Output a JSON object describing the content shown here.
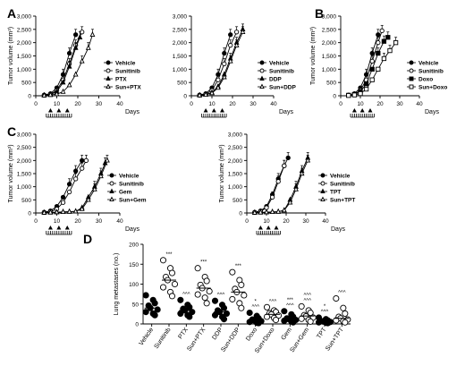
{
  "figure": {
    "panel_letters": [
      "A",
      "B",
      "C",
      "D"
    ]
  },
  "chart_data": [
    {
      "id": "A1",
      "panel": "A",
      "type": "line",
      "ylabel": "Tumor volume (mm³)",
      "xlabel": "Days",
      "xlim": [
        0,
        40
      ],
      "ylim": [
        0,
        3000
      ],
      "xticks": [
        0,
        10,
        20,
        30,
        40
      ],
      "yticks": [
        0,
        500,
        1000,
        1500,
        2000,
        2500,
        3000
      ],
      "ytick_labels": [
        "0",
        "500",
        "1,000",
        "1,500",
        "2,000",
        "2,500",
        "3,000"
      ],
      "legend": [
        "Vehicle",
        "Sunitinib",
        "PTX",
        "Sun+PTX"
      ],
      "series": [
        {
          "name": "Vehicle",
          "marker": "circle-filled",
          "x": [
            4,
            7,
            10,
            13,
            16,
            19
          ],
          "y": [
            30,
            80,
            300,
            800,
            1600,
            2300
          ]
        },
        {
          "name": "Sunitinib",
          "marker": "circle-open",
          "x": [
            4,
            7,
            10,
            13,
            16,
            19,
            22
          ],
          "y": [
            20,
            60,
            200,
            600,
            1200,
            1900,
            2400
          ]
        },
        {
          "name": "PTX",
          "marker": "triangle-filled",
          "x": [
            4,
            7,
            10,
            13,
            16,
            19,
            21
          ],
          "y": [
            20,
            50,
            150,
            500,
            1100,
            1800,
            2200
          ]
        },
        {
          "name": "Sun+PTX",
          "marker": "triangle-open",
          "x": [
            4,
            7,
            10,
            13,
            16,
            19,
            22,
            25,
            27
          ],
          "y": [
            10,
            30,
            60,
            150,
            400,
            800,
            1300,
            1800,
            2300
          ]
        }
      ],
      "dosing": {
        "triangles": [
          7,
          11,
          15
        ],
        "ticks": [
          5,
          6,
          7,
          8,
          9,
          10,
          11,
          12,
          13,
          14,
          15,
          16,
          17
        ]
      }
    },
    {
      "id": "A2",
      "panel": "A",
      "type": "line",
      "xlabel": "Days",
      "xlim": [
        0,
        40
      ],
      "ylim": [
        0,
        3000
      ],
      "xticks": [
        0,
        10,
        20,
        30,
        40
      ],
      "yticks": [
        0,
        500,
        1000,
        1500,
        2000,
        2500,
        3000
      ],
      "ytick_labels": [
        "0",
        "500",
        "1,000",
        "1,500",
        "2,000",
        "2,500",
        "3,000"
      ],
      "legend": [
        "Vehicle",
        "Sunitinib",
        "DDP",
        "Sun+DDP"
      ],
      "series": [
        {
          "name": "Vehicle",
          "marker": "circle-filled",
          "x": [
            4,
            7,
            10,
            13,
            16,
            19
          ],
          "y": [
            30,
            80,
            300,
            800,
            1600,
            2300
          ]
        },
        {
          "name": "Sunitinib",
          "marker": "circle-open",
          "x": [
            4,
            7,
            10,
            13,
            16,
            19,
            22
          ],
          "y": [
            20,
            60,
            200,
            600,
            1200,
            1900,
            2400
          ]
        },
        {
          "name": "DDP",
          "marker": "triangle-filled",
          "x": [
            4,
            7,
            10,
            13,
            16,
            19,
            22,
            25
          ],
          "y": [
            20,
            50,
            120,
            350,
            800,
            1400,
            2000,
            2500
          ]
        },
        {
          "name": "Sun+DDP",
          "marker": "triangle-open",
          "x": [
            4,
            7,
            10,
            13,
            16,
            19,
            22,
            25
          ],
          "y": [
            15,
            40,
            100,
            300,
            700,
            1300,
            1900,
            2400
          ]
        }
      ],
      "dosing": {
        "triangles": [
          7,
          11,
          15
        ],
        "ticks": [
          5,
          6,
          7,
          8,
          9,
          10,
          11,
          12,
          13,
          14,
          15,
          16,
          17
        ]
      }
    },
    {
      "id": "B1",
      "panel": "B",
      "type": "line",
      "ylabel": "Tumor volume (mm³)",
      "xlabel": "Days",
      "xlim": [
        0,
        40
      ],
      "ylim": [
        0,
        3000
      ],
      "xticks": [
        0,
        10,
        20,
        30,
        40
      ],
      "yticks": [
        0,
        500,
        1000,
        1500,
        2000,
        2500,
        3000
      ],
      "ytick_labels": [
        "0",
        "500",
        "1,000",
        "1,500",
        "2,000",
        "2,500",
        "3,000"
      ],
      "legend": [
        "Vehicle",
        "Sunitinib",
        "Doxo",
        "Sun+Doxo"
      ],
      "series": [
        {
          "name": "Vehicle",
          "marker": "circle-filled",
          "x": [
            4,
            7,
            10,
            13,
            16,
            19
          ],
          "y": [
            30,
            80,
            300,
            800,
            1600,
            2300
          ]
        },
        {
          "name": "Sunitinib",
          "marker": "circle-open",
          "x": [
            4,
            7,
            10,
            13,
            16,
            19,
            21
          ],
          "y": [
            20,
            60,
            200,
            600,
            1300,
            2000,
            2450
          ]
        },
        {
          "name": "Doxo",
          "marker": "square-filled",
          "x": [
            4,
            7,
            10,
            13,
            16,
            19,
            22,
            24
          ],
          "y": [
            20,
            50,
            150,
            450,
            1000,
            1600,
            2050,
            2200
          ]
        },
        {
          "name": "Sun+Doxo",
          "marker": "square-open",
          "x": [
            4,
            7,
            10,
            13,
            16,
            19,
            22,
            25,
            28
          ],
          "y": [
            10,
            30,
            80,
            250,
            600,
            1000,
            1400,
            1700,
            2000
          ]
        }
      ],
      "dosing": {
        "triangles": [
          7,
          11,
          15
        ],
        "ticks": [
          5,
          6,
          7,
          8,
          9,
          10,
          11,
          12,
          13,
          14,
          15,
          16,
          17
        ]
      }
    },
    {
      "id": "C1",
      "panel": "C",
      "type": "line",
      "ylabel": "Tumor volume (mm³)",
      "xlabel": "Days",
      "xlim": [
        0,
        40
      ],
      "ylim": [
        0,
        3000
      ],
      "xticks": [
        0,
        10,
        20,
        30,
        40
      ],
      "yticks": [
        0,
        500,
        1000,
        1500,
        2000,
        2500,
        3000
      ],
      "ytick_labels": [
        "0",
        "500",
        "1,000",
        "1,500",
        "2,000",
        "2,500",
        "3,000"
      ],
      "legend": [
        "Vehicle",
        "Sunitinib",
        "Gem",
        "Sun+Gem"
      ],
      "series": [
        {
          "name": "Vehicle",
          "marker": "circle-filled",
          "x": [
            4,
            7,
            10,
            13,
            16,
            19,
            22
          ],
          "y": [
            30,
            80,
            250,
            600,
            1100,
            1600,
            2000
          ]
        },
        {
          "name": "Sunitinib",
          "marker": "circle-open",
          "x": [
            4,
            7,
            10,
            13,
            16,
            19,
            22,
            24
          ],
          "y": [
            20,
            50,
            150,
            400,
            800,
            1300,
            1700,
            2000
          ]
        },
        {
          "name": "Gem",
          "marker": "triangle-filled",
          "x": [
            4,
            7,
            10,
            13,
            16,
            19,
            22,
            25,
            28,
            31,
            33
          ],
          "y": [
            10,
            20,
            30,
            40,
            50,
            60,
            200,
            600,
            1000,
            1500,
            1900
          ]
        },
        {
          "name": "Sun+Gem",
          "marker": "triangle-open",
          "x": [
            4,
            7,
            10,
            13,
            16,
            19,
            22,
            25,
            28,
            31,
            34
          ],
          "y": [
            10,
            20,
            30,
            40,
            50,
            60,
            150,
            500,
            900,
            1400,
            2000
          ]
        }
      ],
      "dosing": {
        "triangles": [
          7,
          11,
          15
        ],
        "ticks": [
          5,
          6,
          7,
          8,
          9,
          10,
          11,
          12,
          13,
          14,
          15,
          16,
          17
        ]
      }
    },
    {
      "id": "C2",
      "panel": "C",
      "type": "line",
      "ylabel": "Tumor volume (mm³)",
      "xlabel": "Days",
      "xlim": [
        0,
        40
      ],
      "ylim": [
        0,
        3000
      ],
      "xticks": [
        0,
        10,
        20,
        30,
        40
      ],
      "yticks": [
        0,
        500,
        1000,
        1500,
        2000,
        2500,
        3000
      ],
      "ytick_labels": [
        "0",
        "500",
        "1,000",
        "1,500",
        "2,000",
        "2,500",
        "3,000"
      ],
      "legend": [
        "Vehicle",
        "Sunitinib",
        "TPT",
        "Sun+TPT"
      ],
      "series": [
        {
          "name": "Vehicle",
          "marker": "circle-filled",
          "x": [
            4,
            7,
            10,
            13,
            16,
            19,
            21
          ],
          "y": [
            30,
            80,
            250,
            700,
            1300,
            1800,
            2100
          ]
        },
        {
          "name": "Sunitinib",
          "marker": "circle-open",
          "x": [
            4,
            7,
            10,
            13,
            16,
            19
          ],
          "y": [
            20,
            60,
            200,
            600,
            1200,
            1800
          ]
        },
        {
          "name": "TPT",
          "marker": "triangle-filled",
          "x": [
            4,
            7,
            10,
            13,
            16,
            19,
            22,
            25,
            28,
            31
          ],
          "y": [
            10,
            20,
            30,
            40,
            50,
            100,
            500,
            1000,
            1600,
            2100
          ]
        },
        {
          "name": "Sun+TPT",
          "marker": "triangle-open",
          "x": [
            4,
            7,
            10,
            13,
            16,
            19,
            22,
            25,
            28,
            31
          ],
          "y": [
            10,
            20,
            30,
            40,
            50,
            100,
            400,
            900,
            1500,
            2000
          ]
        }
      ],
      "dosing": {
        "triangles": [
          7,
          11,
          15
        ],
        "ticks": [
          5,
          6,
          7,
          8,
          9,
          10,
          11,
          12,
          13,
          14,
          15,
          16,
          17
        ]
      }
    },
    {
      "id": "D",
      "panel": "D",
      "type": "scatter",
      "ylabel": "Lung metastases (no.)",
      "ylim": [
        0,
        200
      ],
      "yticks": [
        0,
        50,
        100,
        150,
        200
      ],
      "categories": [
        "Vehicle",
        "Sunitinib",
        "PTX",
        "Sun+PTX",
        "DDP",
        "Sun+DDP",
        "Doxo",
        "Sun+Doxo",
        "Gem",
        "Sun+Gem",
        "TPT",
        "Sun+TPT"
      ],
      "filled": [
        true,
        false,
        true,
        false,
        true,
        false,
        true,
        false,
        true,
        false,
        true,
        false
      ],
      "mean": [
        40,
        110,
        34,
        90,
        30,
        80,
        10,
        24,
        12,
        20,
        6,
        14
      ],
      "points": [
        [
          72,
          60,
          52,
          46,
          40,
          36,
          30,
          26,
          22
        ],
        [
          160,
          140,
          128,
          118,
          110,
          100,
          92,
          80,
          70
        ],
        [
          60,
          48,
          42,
          38,
          34,
          30,
          26,
          22,
          18
        ],
        [
          140,
          118,
          108,
          98,
          90,
          82,
          74,
          66,
          52
        ],
        [
          58,
          48,
          40,
          34,
          30,
          26,
          22,
          18,
          12
        ],
        [
          130,
          110,
          98,
          88,
          80,
          72,
          62,
          52,
          40
        ],
        [
          28,
          20,
          14,
          11,
          9,
          7,
          5,
          3,
          2
        ],
        [
          42,
          34,
          30,
          27,
          24,
          21,
          18,
          15,
          10
        ],
        [
          32,
          24,
          18,
          14,
          12,
          10,
          8,
          6,
          4
        ],
        [
          44,
          34,
          28,
          22,
          19,
          16,
          13,
          10,
          6
        ],
        [
          16,
          12,
          9,
          7,
          6,
          5,
          4,
          3,
          2
        ],
        [
          64,
          40,
          26,
          18,
          14,
          11,
          9,
          7,
          4
        ]
      ],
      "annotations": [
        "",
        "***",
        "^^^",
        "***",
        "^^^",
        "***",
        "*\n^^^",
        "^^^",
        "***\n^^^",
        "^^^\n^^^",
        "*\n^^^",
        "^^^"
      ]
    }
  ]
}
